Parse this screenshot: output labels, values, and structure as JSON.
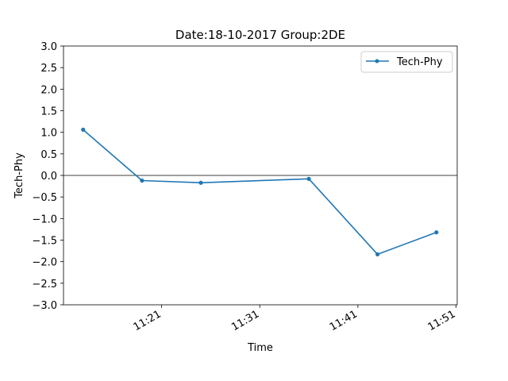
{
  "chart_data": {
    "type": "line",
    "title": "Date:18-10-2017 Group:2DE",
    "xlabel": "Time",
    "ylabel": "Tech-Phy",
    "x_type": "time",
    "xlim": [
      "11:11",
      "11:51"
    ],
    "ylim": [
      -3.0,
      3.0
    ],
    "x_ticks": [
      "11:21",
      "11:31",
      "11:41",
      "11:51"
    ],
    "y_ticks": [
      "3.0",
      "2.5",
      "2.0",
      "1.5",
      "1.0",
      "0.5",
      "0.0",
      "-0.5",
      "-1.0",
      "-1.5",
      "-2.0",
      "-2.5",
      "-3.0"
    ],
    "reference_line_y": 0.0,
    "legend_position": "upper right",
    "grid": false,
    "series": [
      {
        "name": "Tech-Phy",
        "color": "#1f77b4",
        "marker": "circle",
        "x": [
          "11:13",
          "11:19",
          "11:25",
          "11:36",
          "11:43",
          "11:49"
        ],
        "y": [
          1.06,
          -0.12,
          -0.17,
          -0.08,
          -1.83,
          -1.32
        ]
      }
    ]
  }
}
